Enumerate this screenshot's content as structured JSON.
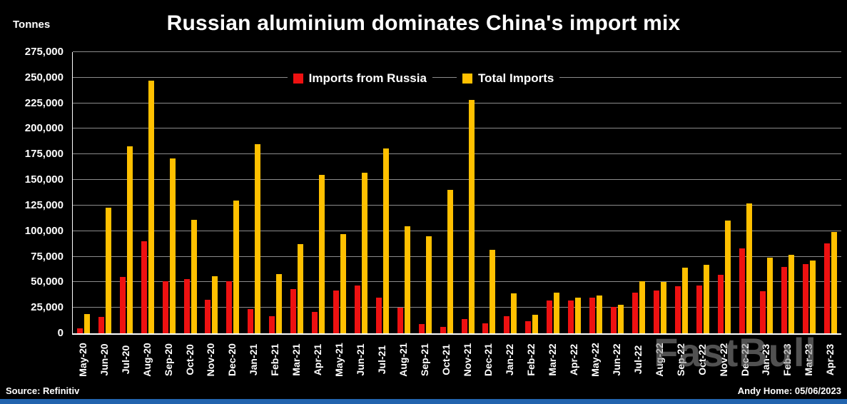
{
  "header": {
    "y_axis_unit": "Tonnes",
    "title": "Russian aluminium dominates China's import mix"
  },
  "legend": [
    {
      "label": "Imports from Russia",
      "color": "#ee1111"
    },
    {
      "label": "Total Imports",
      "color": "#ffc000"
    }
  ],
  "footer": {
    "source": "Source: Refinitiv",
    "attribution": "Andy Home: 05/06/2023"
  },
  "watermark": "FastBull",
  "colors": {
    "background": "#000000",
    "text": "#ffffff",
    "accent_red": "#ee1111",
    "accent_gold": "#ffc000",
    "gridline": "rgba(255,255,255,0.55)",
    "bottom_strip_blue": "#2264ae",
    "watermark_gray": "#878787"
  },
  "chart_data": {
    "type": "bar",
    "title": "Russian aluminium dominates China's import mix",
    "ylabel": "Tonnes",
    "xlabel": "",
    "grid": true,
    "legend_position": "top-center",
    "ylim": [
      0,
      275000
    ],
    "ytick_step": 25000,
    "ytick_labels": [
      "0",
      "25,000",
      "50,000",
      "75,000",
      "100,000",
      "125,000",
      "150,000",
      "175,000",
      "200,000",
      "225,000",
      "250,000",
      "275,000"
    ],
    "categories": [
      "May-20",
      "Jun-20",
      "Jul-20",
      "Aug-20",
      "Sep-20",
      "Oct-20",
      "Nov-20",
      "Dec-20",
      "Jan-21",
      "Feb-21",
      "Mar-21",
      "Apr-21",
      "May-21",
      "Jun-21",
      "Jul-21",
      "Aug-21",
      "Sep-21",
      "Oct-21",
      "Nov-21",
      "Dec-21",
      "Jan-22",
      "Feb-22",
      "Mar-22",
      "Apr-22",
      "May-22",
      "Jun-22",
      "Jul-22",
      "Aug-22",
      "Sep-22",
      "Oct-22",
      "Nov-22",
      "Dec-22",
      "Jan-23",
      "Feb-23",
      "Mar-23",
      "Apr-23"
    ],
    "series": [
      {
        "name": "Imports from Russia",
        "color": "#ee1111",
        "values": [
          5000,
          16000,
          55000,
          90000,
          51000,
          53000,
          33000,
          51000,
          24000,
          17000,
          43000,
          21000,
          42000,
          47000,
          35000,
          25000,
          9000,
          6000,
          14000,
          10000,
          17000,
          12000,
          32000,
          32000,
          35000,
          26000,
          40000,
          42000,
          46000,
          47000,
          57000,
          83000,
          41000,
          65000,
          68000,
          88000
        ]
      },
      {
        "name": "Total Imports",
        "color": "#ffc000",
        "values": [
          19000,
          123000,
          183000,
          247000,
          171000,
          111000,
          56000,
          130000,
          185000,
          58000,
          87000,
          155000,
          97000,
          157000,
          181000,
          105000,
          95000,
          140000,
          228000,
          82000,
          39000,
          18000,
          40000,
          35000,
          37000,
          28000,
          51000,
          50000,
          64000,
          67000,
          110000,
          127000,
          74000,
          77000,
          71000,
          99000
        ]
      }
    ]
  }
}
